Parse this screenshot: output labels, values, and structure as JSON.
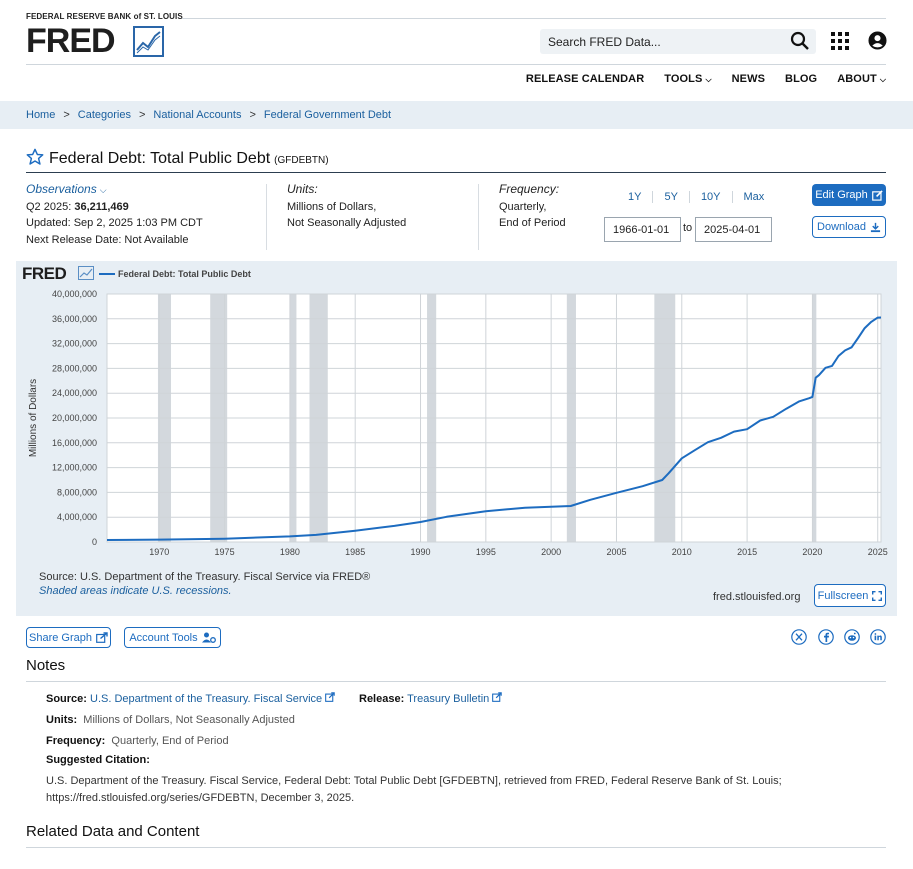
{
  "header": {
    "org_name": "FEDERAL RESERVE BANK of ST. LOUIS",
    "logo_text": "FRED",
    "search_placeholder": "Search FRED Data...",
    "nav": [
      {
        "label": "RELEASE CALENDAR"
      },
      {
        "label": "TOOLS",
        "dropdown": true
      },
      {
        "label": "NEWS"
      },
      {
        "label": "BLOG"
      },
      {
        "label": "ABOUT",
        "dropdown": true
      }
    ]
  },
  "breadcrumb": [
    "Home",
    "Categories",
    "National Accounts",
    "Federal Government Debt"
  ],
  "series": {
    "title": "Federal Debt: Total Public Debt",
    "code": "(GFDEBTN)"
  },
  "observations": {
    "link_label": "Observations",
    "latest_period": "Q2 2025:",
    "latest_value": "36,211,469",
    "updated": "Updated: Sep 2, 2025 1:03 PM CDT",
    "next_release": "Next Release Date: Not Available"
  },
  "units": {
    "heading": "Units:",
    "line1": "Millions of Dollars,",
    "line2": "Not Seasonally Adjusted"
  },
  "frequency": {
    "heading": "Frequency:",
    "line1": "Quarterly,",
    "line2": "End of Period"
  },
  "range": {
    "buttons": [
      "1Y",
      "5Y",
      "10Y",
      "Max"
    ],
    "start": "1966-01-01",
    "to_label": "to",
    "end": "2025-04-01"
  },
  "buttons": {
    "edit_graph": "Edit Graph",
    "download": "Download",
    "fullscreen": "Fullscreen",
    "share_graph": "Share Graph",
    "account_tools": "Account Tools"
  },
  "graph": {
    "logo_text": "FRED",
    "source_line": "Source: U.S. Department of the Treasury. Fiscal Service via FRED®",
    "shaded_note": "Shaded areas indicate U.S. recessions.",
    "site_url": "fred.stlouisfed.org"
  },
  "chart_data": {
    "type": "line",
    "title": "",
    "ylabel": "Millions of Dollars",
    "xlabel": "",
    "xlim": [
      1966.0,
      2025.25
    ],
    "ylim": [
      0,
      40000000
    ],
    "y_ticks": [
      0,
      4000000,
      8000000,
      12000000,
      16000000,
      20000000,
      24000000,
      28000000,
      32000000,
      36000000,
      40000000
    ],
    "y_tick_labels": [
      "0",
      "4,000,000",
      "8,000,000",
      "12,000,000",
      "16,000,000",
      "20,000,000",
      "24,000,000",
      "28,000,000",
      "32,000,000",
      "36,000,000",
      "40,000,000"
    ],
    "x_ticks": [
      1970,
      1975,
      1980,
      1985,
      1990,
      1995,
      2000,
      2005,
      2010,
      2015,
      2020,
      2025
    ],
    "grid": true,
    "color": "#1d6cc0",
    "recession_color": "#d3d8dd",
    "recessions": [
      [
        1969.9,
        1970.9
      ],
      [
        1973.9,
        1975.2
      ],
      [
        1980.0,
        1980.5
      ],
      [
        1981.5,
        1982.9
      ],
      [
        1990.5,
        1991.2
      ],
      [
        2001.2,
        2001.9
      ],
      [
        2007.9,
        2009.5
      ],
      [
        2020.0,
        2020.3
      ]
    ],
    "series": [
      {
        "name": "Federal Debt: Total Public Debt",
        "x": [
          1966.0,
          1970.0,
          1975.0,
          1980.0,
          1982.0,
          1985.0,
          1988.0,
          1990.0,
          1992.0,
          1995.0,
          1998.0,
          2000.0,
          2001.5,
          2003.0,
          2005.0,
          2007.0,
          2008.5,
          2009.0,
          2010.0,
          2011.0,
          2012.0,
          2013.0,
          2014.0,
          2015.0,
          2016.0,
          2017.0,
          2018.0,
          2019.0,
          2019.75,
          2020.0,
          2020.25,
          2020.5,
          2021.0,
          2021.5,
          2022.0,
          2022.5,
          2023.0,
          2023.5,
          2024.0,
          2024.5,
          2025.0,
          2025.25
        ],
        "y": [
          320000,
          380000,
          530000,
          910000,
          1140000,
          1820000,
          2600000,
          3230000,
          4060000,
          4970000,
          5530000,
          5670000,
          5800000,
          6800000,
          7930000,
          9000000,
          10000000,
          11100000,
          13500000,
          14800000,
          16100000,
          16800000,
          17800000,
          18200000,
          19600000,
          20200000,
          21500000,
          22700000,
          23200000,
          23400000,
          26500000,
          26900000,
          28100000,
          28400000,
          30000000,
          30900000,
          31400000,
          32900000,
          34500000,
          35500000,
          36200000,
          36211469
        ]
      }
    ]
  },
  "notes": {
    "heading": "Notes",
    "source_label": "Source:",
    "source_value": "U.S. Department of the Treasury. Fiscal Service",
    "release_label": "Release:",
    "release_value": "Treasury Bulletin",
    "units_label": "Units:",
    "units_value": "Millions of Dollars, Not Seasonally Adjusted",
    "frequency_label": "Frequency:",
    "frequency_value": "Quarterly, End of Period",
    "citation_label": "Suggested Citation:",
    "citation_line1": "U.S. Department of the Treasury. Fiscal Service, Federal Debt: Total Public Debt [GFDEBTN], retrieved from FRED, Federal Reserve Bank of St. Louis;",
    "citation_line2": "https://fred.stlouisfed.org/series/GFDEBTN, December 3, 2025."
  },
  "related_heading": "Related Data and Content",
  "social_icons": [
    "x-icon",
    "facebook-icon",
    "reddit-icon",
    "linkedin-icon"
  ]
}
